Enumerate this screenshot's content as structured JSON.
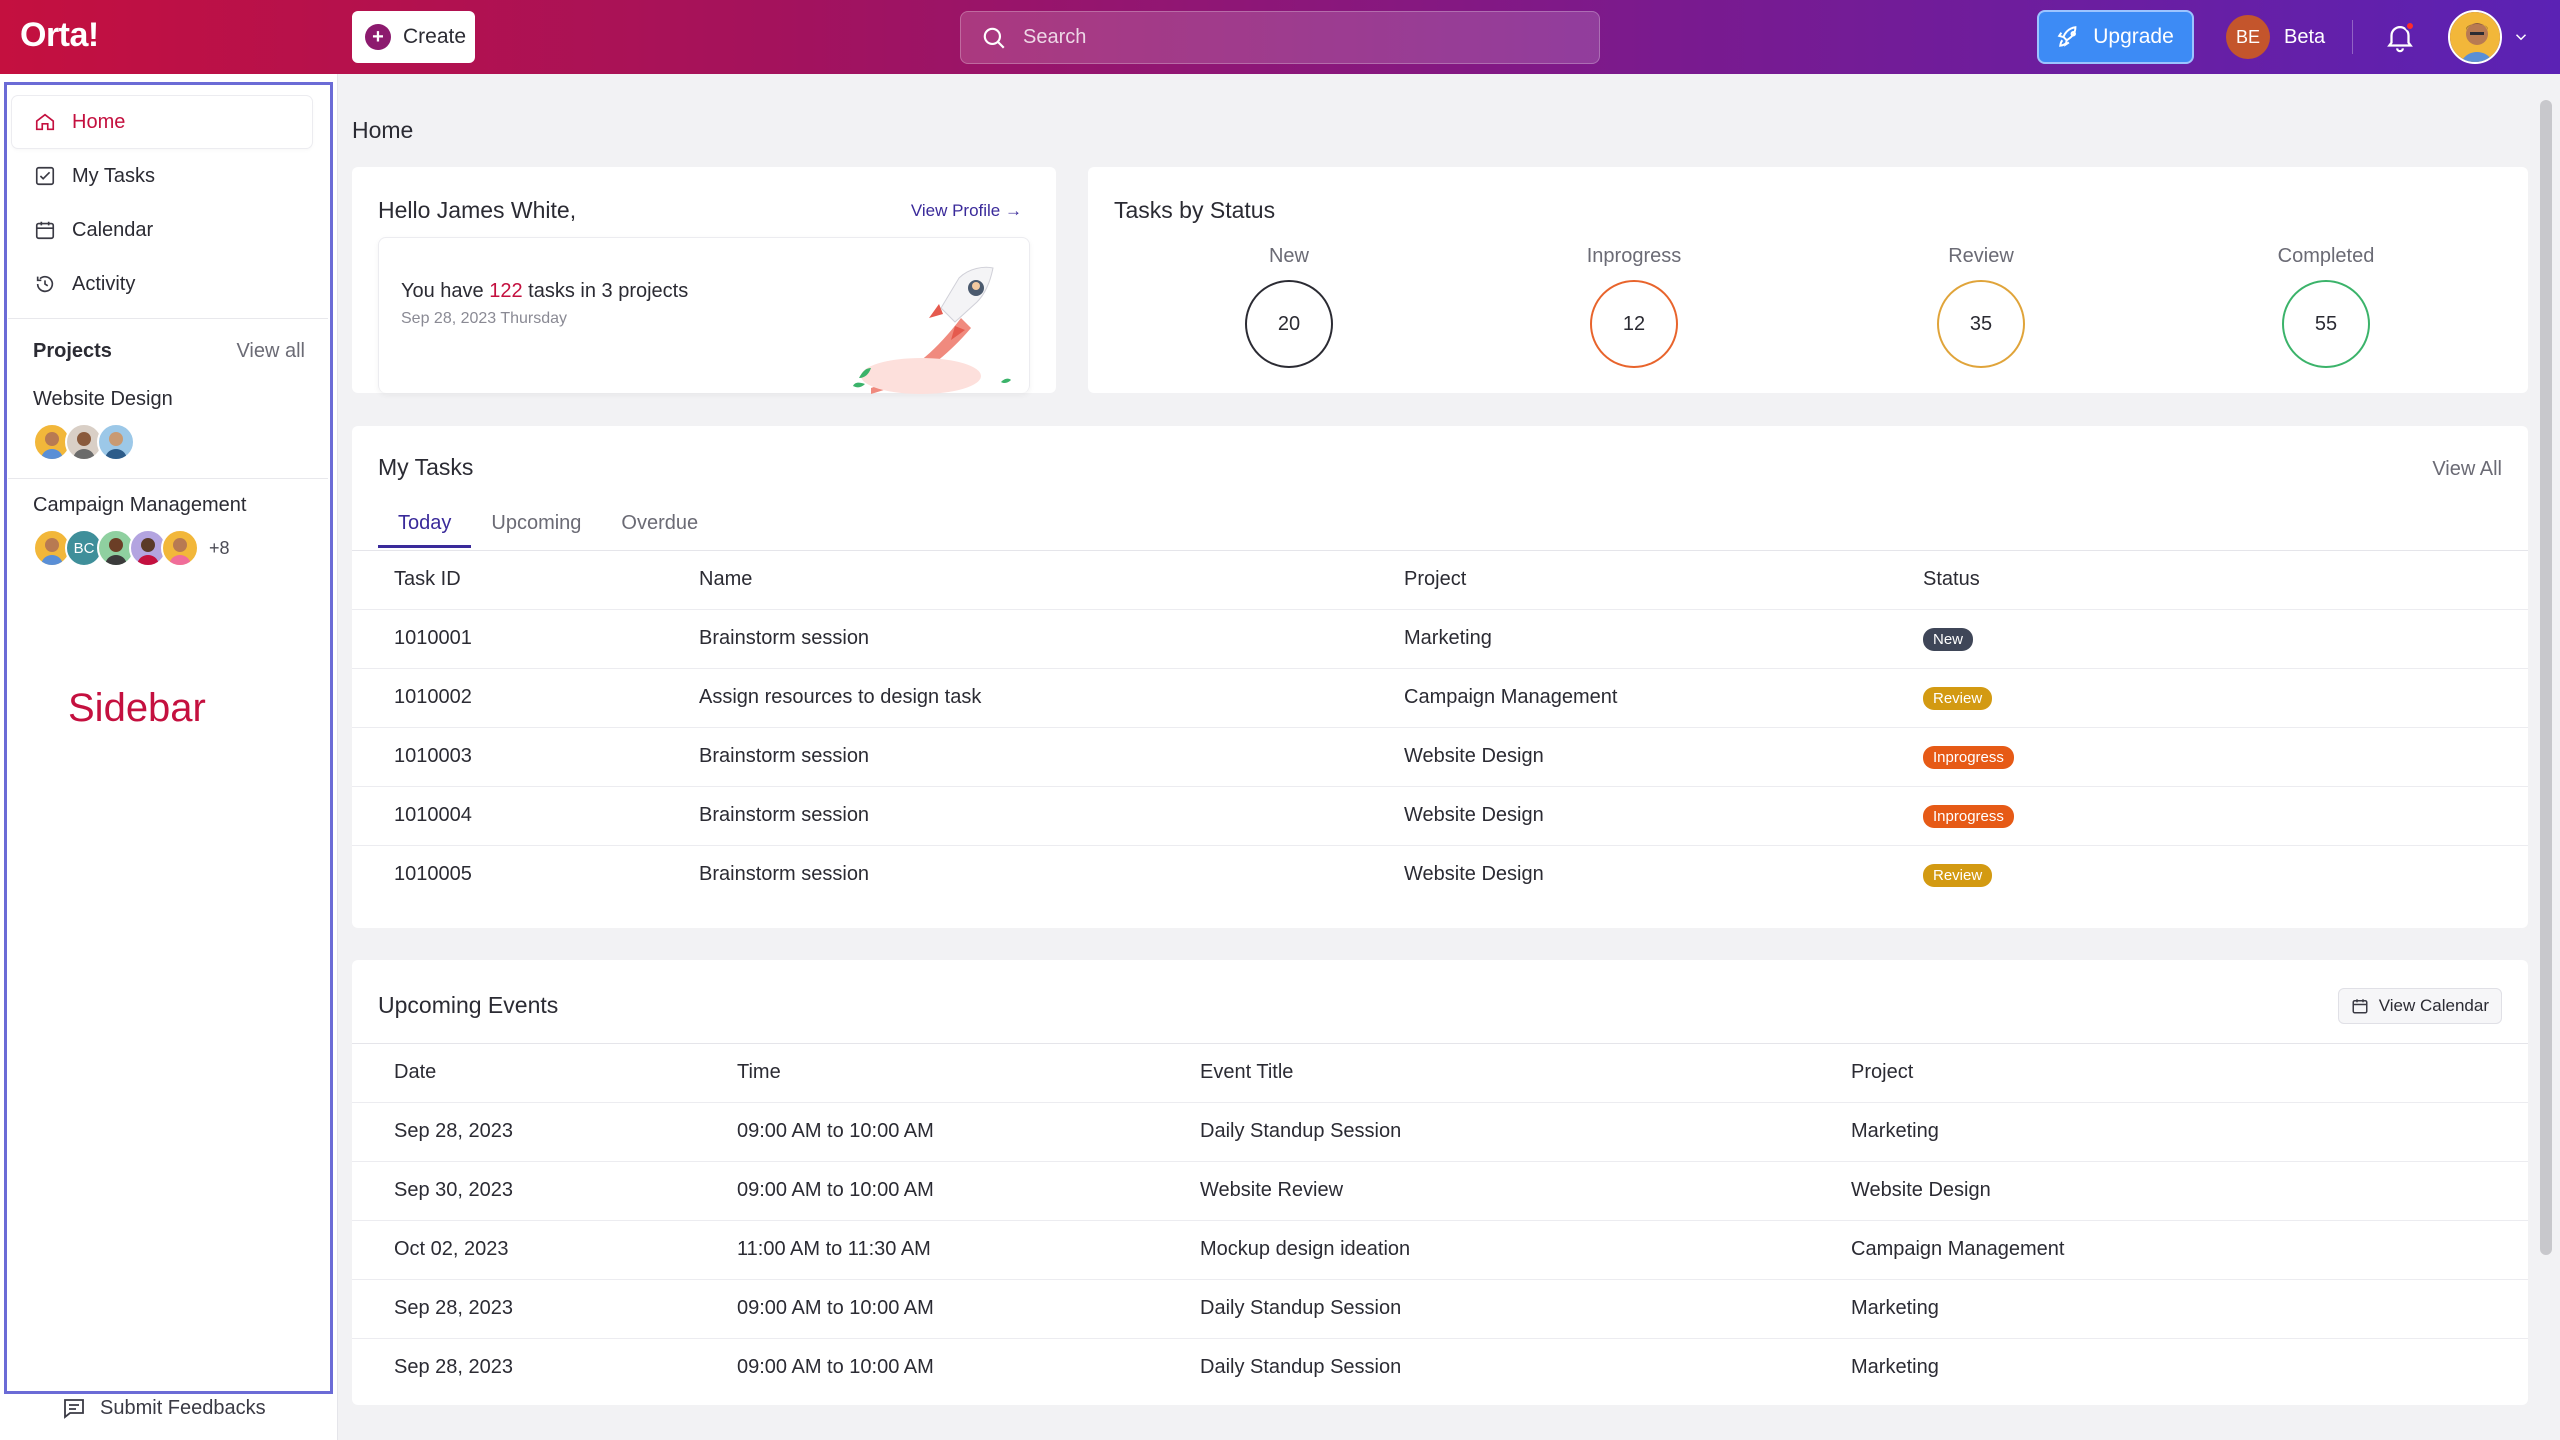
{
  "app": {
    "logo": "Orta!"
  },
  "topbar": {
    "create_label": "Create",
    "search_placeholder": "Search",
    "upgrade_label": "Upgrade",
    "workspace_initials": "BE",
    "workspace_name": "Beta"
  },
  "sidebar": {
    "items": [
      {
        "label": "Home",
        "icon": "home-icon",
        "active": true
      },
      {
        "label": "My Tasks",
        "icon": "checkbox-icon"
      },
      {
        "label": "Calendar",
        "icon": "calendar-icon"
      },
      {
        "label": "Activity",
        "icon": "history-icon"
      }
    ],
    "projects_title": "Projects",
    "view_all": "View all",
    "projects": [
      {
        "name": "Website Design",
        "members": 3
      },
      {
        "name": "Campaign Management",
        "members": 5,
        "initials": "BC",
        "more": "+8"
      }
    ],
    "annotation": "Sidebar",
    "feedback_label": "Submit Feedbacks"
  },
  "main": {
    "page_title": "Home",
    "hello": {
      "greeting": "Hello James White,",
      "view_profile": "View Profile",
      "line_pre": "You have ",
      "task_count": "122",
      "line_post": " tasks in 3 projects",
      "date": "Sep 28, 2023 Thursday"
    },
    "status": {
      "title": "Tasks by Status",
      "items": [
        {
          "label": "New",
          "value": "20",
          "color": "#2b2b33"
        },
        {
          "label": "Inprogress",
          "value": "12",
          "color": "#e8642c"
        },
        {
          "label": "Review",
          "value": "35",
          "color": "#e0a43a"
        },
        {
          "label": "Completed",
          "value": "55",
          "color": "#3bb36a"
        }
      ]
    },
    "tasks": {
      "title": "My Tasks",
      "view_all": "View All",
      "tabs": [
        "Today",
        "Upcoming",
        "Overdue"
      ],
      "columns": [
        "Task ID",
        "Name",
        "Project",
        "Status"
      ],
      "rows": [
        {
          "id": "1010001",
          "name": "Brainstorm session",
          "project": "Marketing",
          "status": "New",
          "color": "#3f4658"
        },
        {
          "id": "1010002",
          "name": "Assign resources to design task",
          "project": "Campaign Management",
          "status": "Review",
          "color": "#d39a12"
        },
        {
          "id": "1010003",
          "name": "Brainstorm session",
          "project": "Website Design",
          "status": "Inprogress",
          "color": "#e65a16"
        },
        {
          "id": "1010004",
          "name": "Brainstorm session",
          "project": "Website Design",
          "status": "Inprogress",
          "color": "#e65a16"
        },
        {
          "id": "1010005",
          "name": "Brainstorm session",
          "project": "Website Design",
          "status": "Review",
          "color": "#d39a12"
        }
      ]
    },
    "events": {
      "title": "Upcoming Events",
      "view_calendar": "View Calendar",
      "columns": [
        "Date",
        "Time",
        "Event Title",
        "Project"
      ],
      "rows": [
        {
          "date": "Sep 28, 2023",
          "time": "09:00 AM to 10:00 AM",
          "title": "Daily Standup Session",
          "project": "Marketing"
        },
        {
          "date": "Sep 30, 2023",
          "time": "09:00 AM to 10:00 AM",
          "title": "Website Review",
          "project": "Website Design"
        },
        {
          "date": "Oct 02, 2023",
          "time": "11:00 AM to 11:30 AM",
          "title": "Mockup design ideation",
          "project": "Campaign Management"
        },
        {
          "date": "Sep 28, 2023",
          "time": "09:00 AM to 10:00 AM",
          "title": "Daily Standup Session",
          "project": "Marketing"
        },
        {
          "date": "Sep 28, 2023",
          "time": "09:00 AM to 10:00 AM",
          "title": "Daily Standup Session",
          "project": "Marketing"
        }
      ]
    }
  }
}
